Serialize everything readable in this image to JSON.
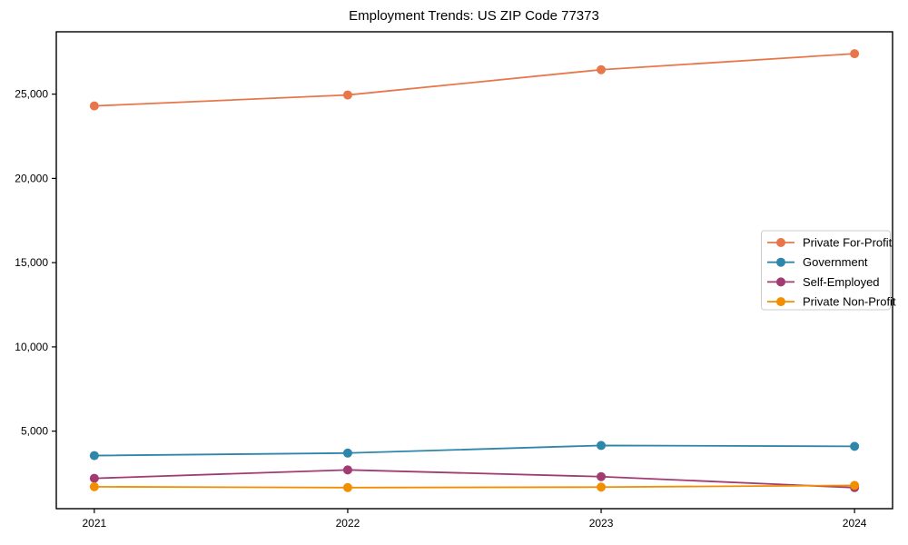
{
  "title": "Employment Trends: US ZIP Code 77373",
  "chart_data": {
    "type": "line",
    "x": [
      2021,
      2022,
      2023,
      2024
    ],
    "xtick_labels": [
      "2021",
      "2022",
      "2023",
      "2024"
    ],
    "yticks": [
      5000,
      10000,
      15000,
      20000,
      25000
    ],
    "ytick_labels": [
      "5,000",
      "10,000",
      "15,000",
      "20,000",
      "25,000"
    ],
    "xlim": [
      2020.85,
      2024.15
    ],
    "ylim": [
      400,
      28700
    ],
    "grid": false,
    "legend_position": "center right",
    "series": [
      {
        "name": "Private For-Profit",
        "color": "#E8764A",
        "values": [
          24300,
          24950,
          26450,
          27400
        ]
      },
      {
        "name": "Government",
        "color": "#2E86AB",
        "values": [
          3550,
          3700,
          4150,
          4100
        ]
      },
      {
        "name": "Self-Employed",
        "color": "#A23B72",
        "values": [
          2200,
          2700,
          2300,
          1650
        ]
      },
      {
        "name": "Private Non-Profit",
        "color": "#F18F01",
        "values": [
          1700,
          1650,
          1680,
          1780
        ]
      }
    ],
    "xlabel": "",
    "ylabel": ""
  },
  "colors": {
    "axis": "#000000",
    "legend_border": "#cccccc",
    "background": "#ffffff"
  }
}
